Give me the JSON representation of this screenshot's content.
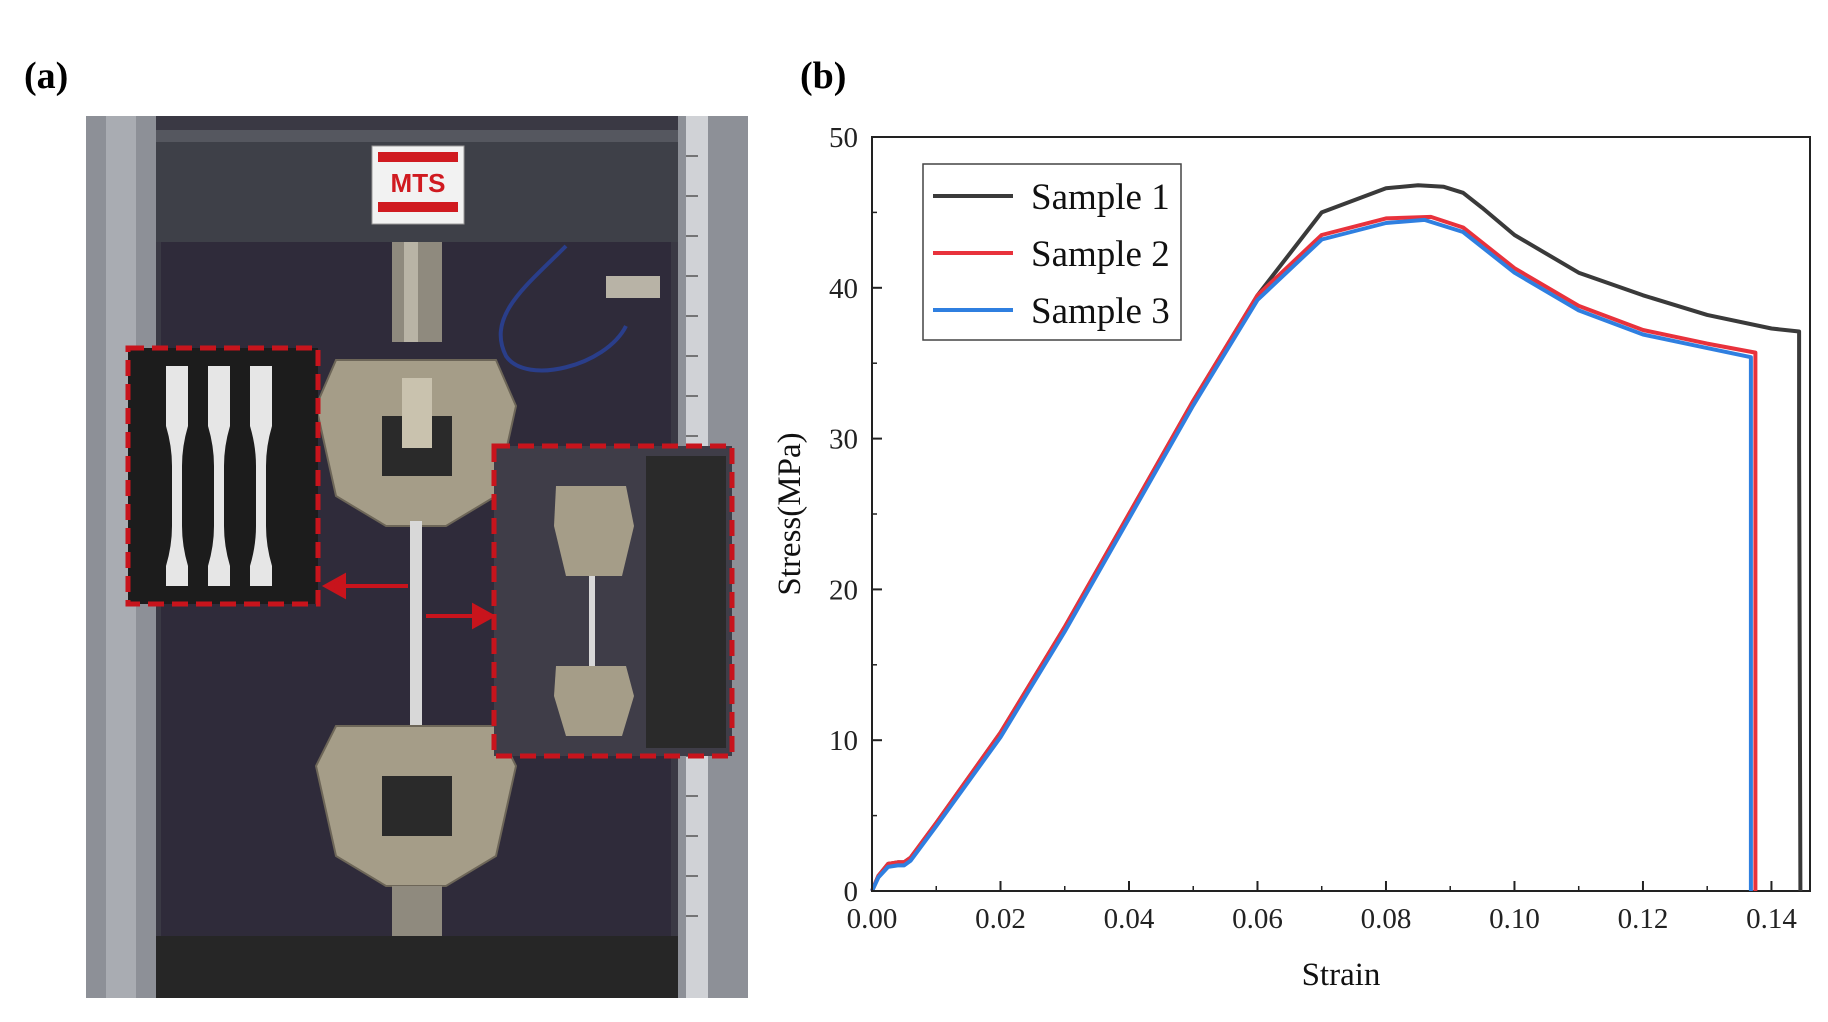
{
  "panels": {
    "a_label": "(a)",
    "b_label": "(b)"
  },
  "photo": {
    "logo_text": "MTS"
  },
  "colors": {
    "sample1": "#3a3a3a",
    "sample2": "#e8323c",
    "sample3": "#2f7fe0",
    "inset_border": "#c8141c"
  },
  "chart_data": {
    "type": "line",
    "xlabel": "Strain",
    "ylabel": "Stress(MPa)",
    "xlim": [
      0,
      0.146
    ],
    "ylim": [
      0,
      50
    ],
    "xticks": [
      0,
      0.02,
      0.04,
      0.06,
      0.08,
      0.1,
      0.12,
      0.14
    ],
    "xtick_labels": [
      "0.00",
      "0.02",
      "0.04",
      "0.06",
      "0.08",
      "0.10",
      "0.12",
      "0.14"
    ],
    "yticks": [
      0,
      10,
      20,
      30,
      40,
      50
    ],
    "ytick_labels": [
      "0",
      "10",
      "20",
      "30",
      "40",
      "50"
    ],
    "grid": false,
    "legend_position": "top-left",
    "series": [
      {
        "name": "Sample 1",
        "color": "#3a3a3a",
        "x": [
          0,
          0.001,
          0.0025,
          0.004,
          0.005,
          0.006,
          0.01,
          0.02,
          0.03,
          0.04,
          0.05,
          0.06,
          0.07,
          0.08,
          0.085,
          0.089,
          0.092,
          0.095,
          0.1,
          0.11,
          0.12,
          0.13,
          0.14,
          0.1443,
          0.1443,
          0.1445
        ],
        "y": [
          0,
          1.0,
          1.8,
          1.9,
          1.9,
          2.2,
          4.5,
          10.5,
          17.5,
          25.0,
          32.5,
          39.5,
          45.0,
          46.6,
          46.8,
          46.7,
          46.3,
          45.3,
          43.5,
          41.0,
          39.5,
          38.2,
          37.3,
          37.1,
          29.5,
          0
        ]
      },
      {
        "name": "Sample 2",
        "color": "#e8323c",
        "x": [
          0,
          0.001,
          0.0025,
          0.004,
          0.005,
          0.006,
          0.01,
          0.02,
          0.03,
          0.04,
          0.05,
          0.06,
          0.07,
          0.08,
          0.087,
          0.092,
          0.1,
          0.11,
          0.12,
          0.13,
          0.1375,
          0.1375
        ],
        "y": [
          0,
          1.0,
          1.8,
          1.9,
          1.9,
          2.2,
          4.5,
          10.5,
          17.5,
          25.0,
          32.5,
          39.5,
          43.5,
          44.6,
          44.7,
          44.0,
          41.3,
          38.8,
          37.2,
          36.3,
          35.7,
          0
        ]
      },
      {
        "name": "Sample 3",
        "color": "#2f7fe0",
        "x": [
          0,
          0.001,
          0.0025,
          0.004,
          0.005,
          0.006,
          0.01,
          0.02,
          0.03,
          0.04,
          0.05,
          0.06,
          0.07,
          0.08,
          0.086,
          0.092,
          0.1,
          0.11,
          0.12,
          0.13,
          0.1368,
          0.1368
        ],
        "y": [
          0,
          0.9,
          1.6,
          1.7,
          1.7,
          2.0,
          4.3,
          10.2,
          17.2,
          24.7,
          32.2,
          39.2,
          43.2,
          44.3,
          44.5,
          43.7,
          41.0,
          38.5,
          36.9,
          36.0,
          35.4,
          0
        ]
      }
    ]
  }
}
